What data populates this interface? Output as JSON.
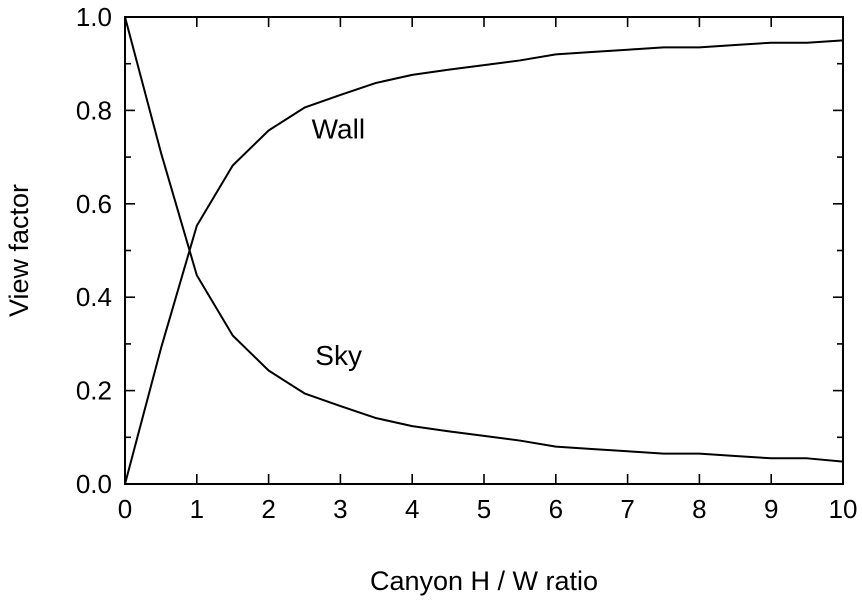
{
  "chart_data": {
    "type": "line",
    "xlabel": "Canyon H / W ratio",
    "ylabel": "View factor",
    "xlim": [
      0,
      10
    ],
    "ylim": [
      0,
      1
    ],
    "x_ticks": [
      0,
      1,
      2,
      3,
      4,
      5,
      6,
      7,
      8,
      9,
      10
    ],
    "x_tick_labels": [
      "0",
      "1",
      "2",
      "3",
      "4",
      "5",
      "6",
      "7",
      "8",
      "9",
      "10"
    ],
    "y_ticks": [
      0,
      0.2,
      0.4,
      0.6,
      0.8,
      1.0
    ],
    "y_tick_labels": [
      "0.0",
      "0.2",
      "0.4",
      "0.6",
      "0.8",
      "1.0"
    ],
    "y_minor_ticks": [
      0.1,
      0.3,
      0.5,
      0.7,
      0.9
    ],
    "grid": false,
    "legend": "none",
    "series": [
      {
        "name": "Wall",
        "x": [
          0,
          0.5,
          1,
          1.5,
          2,
          2.5,
          3,
          3.5,
          4,
          4.5,
          5,
          5.5,
          6,
          6.5,
          7,
          7.5,
          8,
          8.5,
          9,
          9.5,
          10
        ],
        "y": [
          0.0,
          0.29,
          0.553,
          0.682,
          0.757,
          0.806,
          0.833,
          0.859,
          0.876,
          0.887,
          0.897,
          0.907,
          0.92,
          0.925,
          0.93,
          0.935,
          0.935,
          0.94,
          0.945,
          0.945,
          0.95
        ]
      },
      {
        "name": "Sky",
        "x": [
          0,
          0.5,
          1,
          1.5,
          2,
          2.5,
          3,
          3.5,
          4,
          4.5,
          5,
          5.5,
          6,
          6.5,
          7,
          7.5,
          8,
          8.5,
          9,
          9.5,
          10
        ],
        "y": [
          1.0,
          0.71,
          0.447,
          0.318,
          0.243,
          0.194,
          0.167,
          0.141,
          0.124,
          0.113,
          0.103,
          0.093,
          0.08,
          0.075,
          0.07,
          0.065,
          0.065,
          0.06,
          0.055,
          0.055,
          0.048
        ]
      }
    ],
    "annotations": [
      {
        "text": "Wall",
        "x": 2.6,
        "y": 0.74
      },
      {
        "text": "Sky",
        "x": 2.65,
        "y": 0.255
      }
    ]
  }
}
